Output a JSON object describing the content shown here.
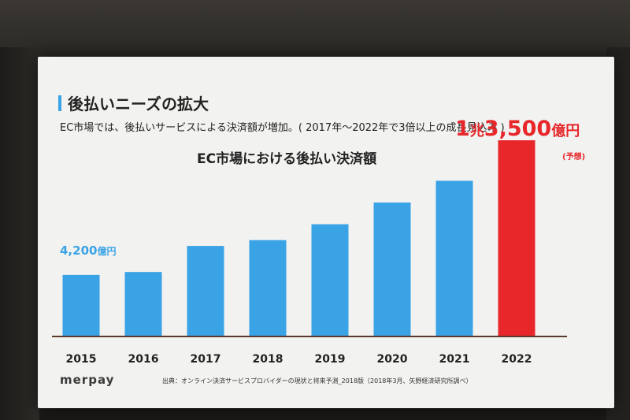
{
  "slide": {
    "title": "後払いニーズの拡大",
    "subtitle": "EC市場では、後払いサービスによる決済額が増加。( 2017年〜2022年で3倍以上の成長見込み )",
    "logo": "merpay",
    "source": "出典：オンライン決済サービスプロバイダーの現状と将来予測_2018版（2018年3月、矢野経済研究所調べ）"
  },
  "labels": {
    "first_value": "4,200",
    "first_unit": "億円",
    "last_value_a": "1",
    "last_value_b": "兆",
    "last_value_c": "3,500",
    "last_value_d": "億円",
    "forecast": "(予想)"
  },
  "colors": {
    "actual": "#3aa3e6",
    "forecast": "#e8272b",
    "axis": "#5a3a2a"
  },
  "chart_data": {
    "type": "bar",
    "title": "EC市場における後払い決済額",
    "categories": [
      "2015",
      "2016",
      "2017",
      "2018",
      "2019",
      "2020",
      "2021",
      "2022"
    ],
    "values": [
      4200,
      4400,
      6200,
      6600,
      7700,
      9200,
      10700,
      13500
    ],
    "unit": "億円",
    "ylim": [
      0,
      13500
    ],
    "highlight_index": 7,
    "grid": false,
    "legend": "none"
  }
}
